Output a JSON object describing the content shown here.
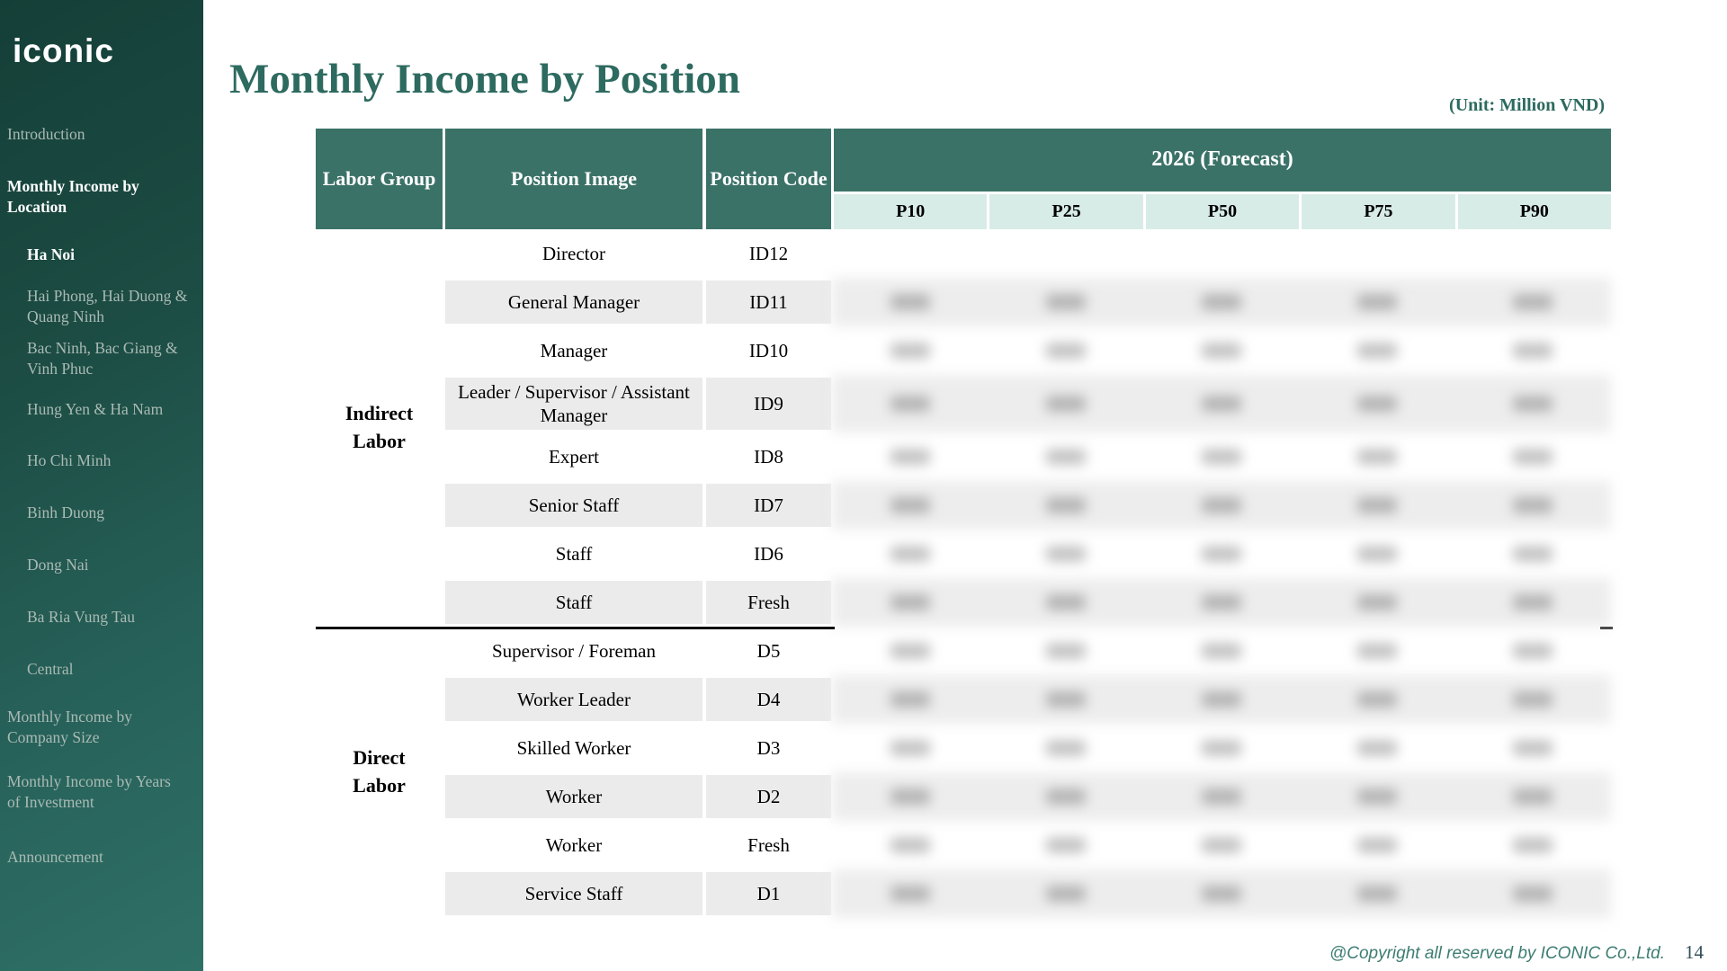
{
  "colors": {
    "sidebar_teal_dark": "#143f38",
    "sidebar_teal_light": "#2f7066",
    "header_teal": "#3b7268",
    "subheader_teal": "#d8ece7",
    "row_gray": "#ebebeb",
    "title_teal": "#2d6a5f"
  },
  "sidebar": {
    "logo": "iconic",
    "items": [
      {
        "label": "Introduction",
        "level": 0,
        "active": false
      },
      {
        "label": "Monthly Income by Location",
        "level": 0,
        "active": true
      },
      {
        "label": "Ha Noi",
        "level": 1,
        "active": true
      },
      {
        "label": "Hai Phong, Hai Duong & Quang Ninh",
        "level": 1,
        "active": false
      },
      {
        "label": "Bac Ninh, Bac Giang & Vinh Phuc",
        "level": 1,
        "active": false
      },
      {
        "label": "Hung Yen & Ha Nam",
        "level": 1,
        "active": false
      },
      {
        "label": "Ho Chi Minh",
        "level": 1,
        "active": false
      },
      {
        "label": "Binh Duong",
        "level": 1,
        "active": false
      },
      {
        "label": "Dong Nai",
        "level": 1,
        "active": false
      },
      {
        "label": "Ba Ria Vung Tau",
        "level": 1,
        "active": false
      },
      {
        "label": "Central",
        "level": 1,
        "active": false
      },
      {
        "label": "Monthly Income by Company Size",
        "level": 0,
        "active": false
      },
      {
        "label": "Monthly Income by Years of Investment",
        "level": 0,
        "active": false
      },
      {
        "label": "Announcement",
        "level": 0,
        "active": false
      }
    ]
  },
  "header": {
    "title": "Monthly Income by Position",
    "unit_note": "(Unit: Million VND)"
  },
  "table": {
    "column_headers": {
      "labor_group": "Labor Group",
      "position_image": "Position Image",
      "position_code": "Position Code"
    },
    "forecast_header": "2026 (Forecast)",
    "percentiles": [
      "P10",
      "P25",
      "P50",
      "P75",
      "P90"
    ],
    "groups": [
      {
        "label": "Indirect Labor",
        "row_count": 8
      },
      {
        "label": "Direct Labor",
        "row_count": 6
      }
    ],
    "values_state": "blurred-illegible",
    "rows": [
      {
        "position": "Director",
        "code": "ID12",
        "group": "Indirect Labor",
        "shaded": false,
        "tall": false,
        "values_blank": true
      },
      {
        "position": "General Manager",
        "code": "ID11",
        "group": "Indirect Labor",
        "shaded": true,
        "tall": false,
        "values_blank": false
      },
      {
        "position": "Manager",
        "code": "ID10",
        "group": "Indirect Labor",
        "shaded": false,
        "tall": false,
        "values_blank": false
      },
      {
        "position": "Leader / Supervisor / Assistant Manager",
        "code": "ID9",
        "group": "Indirect Labor",
        "shaded": true,
        "tall": true,
        "values_blank": false
      },
      {
        "position": "Expert",
        "code": "ID8",
        "group": "Indirect Labor",
        "shaded": false,
        "tall": false,
        "values_blank": false
      },
      {
        "position": "Senior Staff",
        "code": "ID7",
        "group": "Indirect Labor",
        "shaded": true,
        "tall": false,
        "values_blank": false
      },
      {
        "position": "Staff",
        "code": "ID6",
        "group": "Indirect Labor",
        "shaded": false,
        "tall": false,
        "values_blank": false
      },
      {
        "position": "Staff",
        "code": "Fresh",
        "group": "Indirect Labor",
        "shaded": true,
        "tall": false,
        "values_blank": false
      },
      {
        "position": "Supervisor / Foreman",
        "code": "D5",
        "group": "Direct Labor",
        "shaded": false,
        "tall": false,
        "values_blank": false
      },
      {
        "position": "Worker Leader",
        "code": "D4",
        "group": "Direct Labor",
        "shaded": true,
        "tall": false,
        "values_blank": false
      },
      {
        "position": "Skilled Worker",
        "code": "D3",
        "group": "Direct Labor",
        "shaded": false,
        "tall": false,
        "values_blank": false
      },
      {
        "position": "Worker",
        "code": "D2",
        "group": "Direct Labor",
        "shaded": true,
        "tall": false,
        "values_blank": false
      },
      {
        "position": "Worker",
        "code": "Fresh",
        "group": "Direct Labor",
        "shaded": false,
        "tall": false,
        "values_blank": false
      },
      {
        "position": "Service Staff",
        "code": "D1",
        "group": "Direct Labor",
        "shaded": true,
        "tall": false,
        "values_blank": false
      }
    ]
  },
  "footer": {
    "copyright": "@Copyright all reserved by ICONIC Co.,Ltd.",
    "page_number": "14"
  }
}
